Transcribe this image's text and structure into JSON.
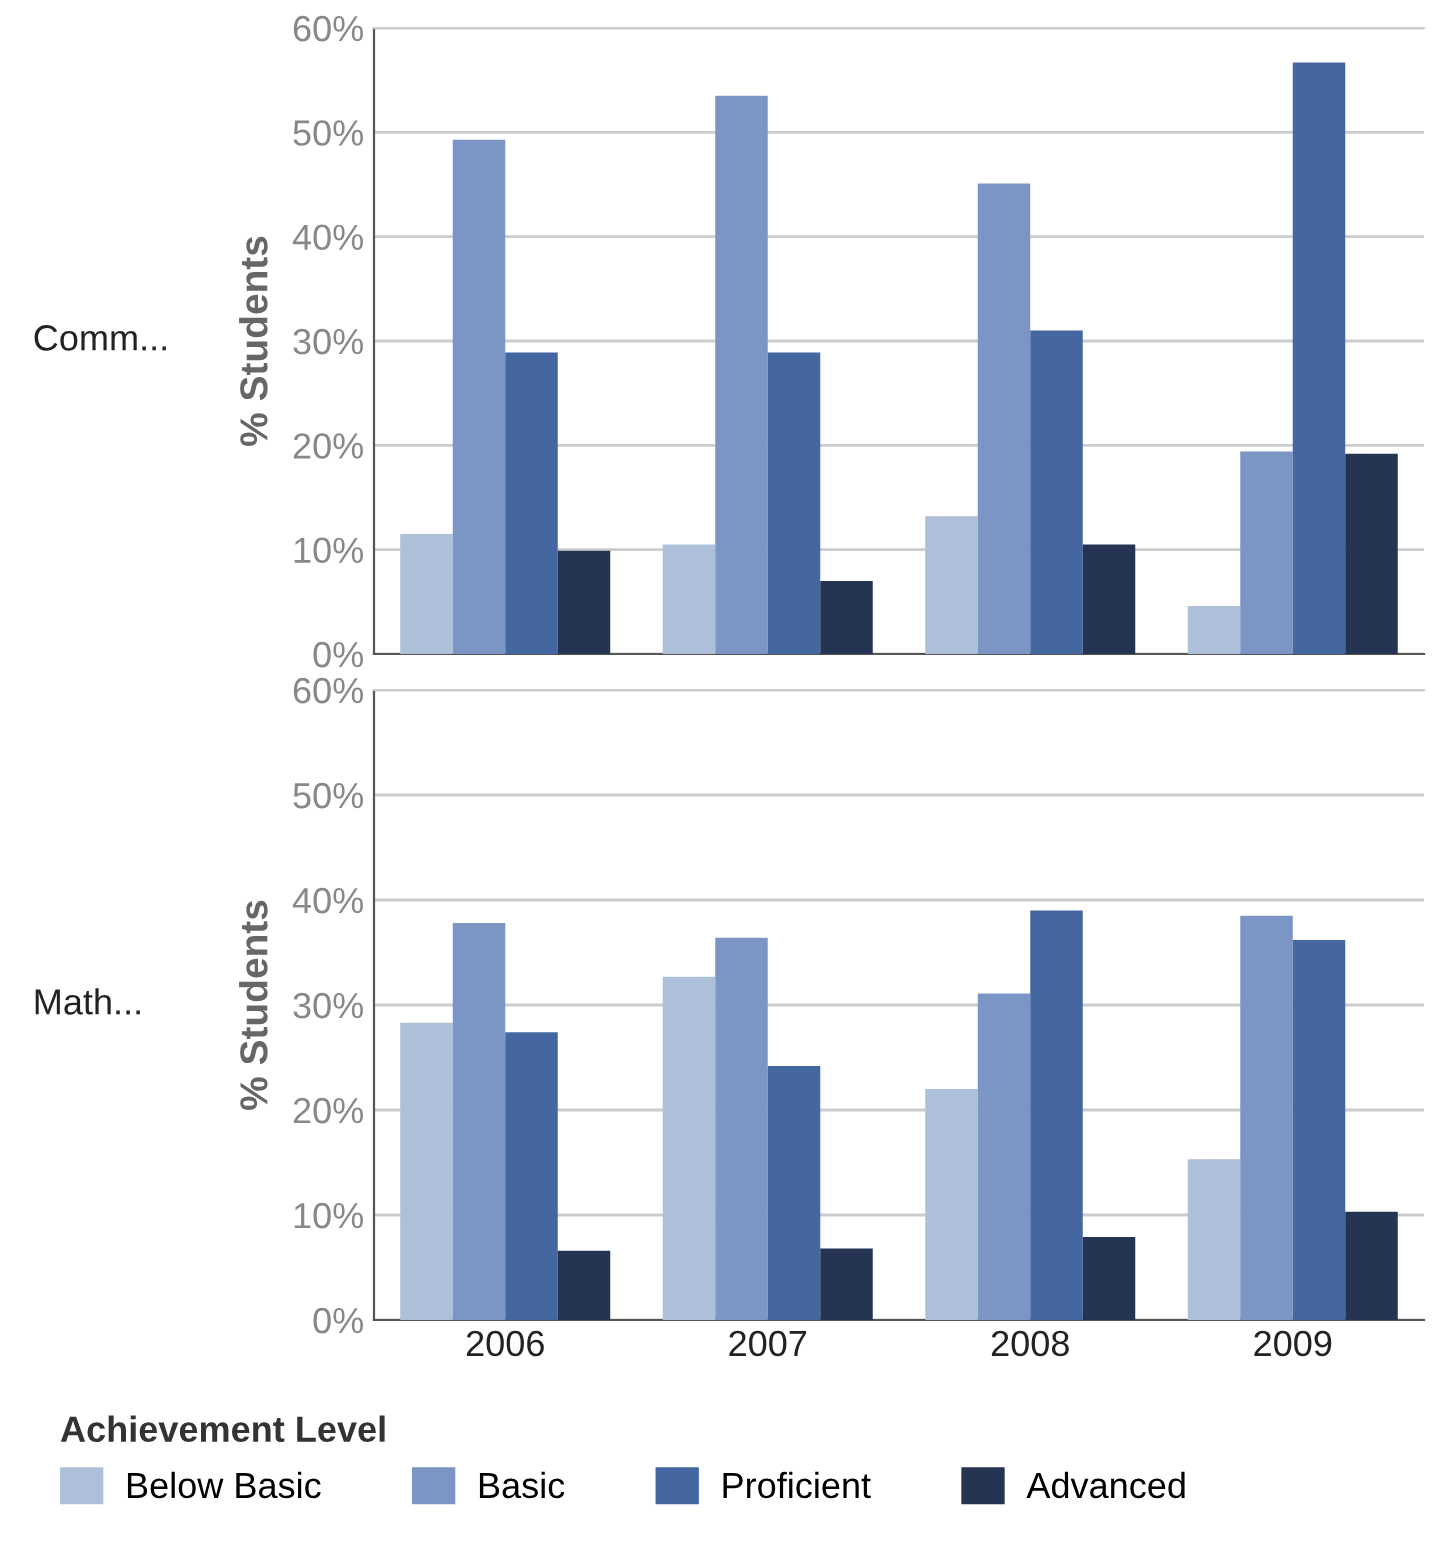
{
  "chart_data": [
    {
      "type": "bar",
      "title": "Comm...",
      "ylabel": "% Students",
      "categories": [
        "2006",
        "2007",
        "2008",
        "2009"
      ],
      "tick_labels": "y",
      "series": [
        {
          "color": "#aebfd9",
          "values": [
            11.5,
            10.5,
            13.2,
            4.6
          ]
        },
        {
          "color": "#7b96c4",
          "values": [
            49.3,
            53.5,
            45.1,
            19.4
          ]
        },
        {
          "color": "#4467a1",
          "values": [
            28.9,
            28.9,
            31.0,
            56.7
          ]
        },
        {
          "color": "#243452",
          "values": [
            9.9,
            7.0,
            10.5,
            19.2
          ]
        }
      ],
      "ylim": [
        0,
        60
      ],
      "yticks": [
        {
          "value": 0,
          "label": "0%"
        },
        {
          "value": 10,
          "label": "10%"
        },
        {
          "value": 20,
          "label": "20%"
        },
        {
          "value": 30,
          "label": "30%"
        },
        {
          "value": 40,
          "label": "40%"
        },
        {
          "value": 50,
          "label": "50%"
        },
        {
          "value": 60,
          "label": "60%"
        }
      ],
      "grid": "y"
    },
    {
      "type": "bar",
      "title": "Math...",
      "ylabel": "% Students",
      "categories": [
        "2006",
        "2007",
        "2008",
        "2009"
      ],
      "legend_title": "Achievement Level",
      "legend": "bottom",
      "series": [
        {
          "name": "Below Basic",
          "color": "#aebfd9",
          "values": [
            28.3,
            32.7,
            22.0,
            15.3
          ]
        },
        {
          "name": "Basic",
          "color": "#7b96c4",
          "values": [
            37.8,
            36.4,
            31.1,
            38.5
          ]
        },
        {
          "name": "Proficient",
          "color": "#4467a1",
          "values": [
            27.4,
            24.2,
            39.0,
            36.2
          ]
        },
        {
          "name": "Advanced",
          "color": "#243452",
          "values": [
            6.6,
            6.8,
            7.9,
            10.3
          ]
        }
      ],
      "ylim": [
        0,
        60
      ],
      "yticks": [
        {
          "value": 0,
          "label": "0%"
        },
        {
          "value": 10,
          "label": "10%"
        },
        {
          "value": 20,
          "label": "20%"
        },
        {
          "value": 30,
          "label": "30%"
        },
        {
          "value": 40,
          "label": "40%"
        },
        {
          "value": 50,
          "label": "50%"
        },
        {
          "value": 60,
          "label": "60%"
        }
      ],
      "grid": "y"
    }
  ]
}
